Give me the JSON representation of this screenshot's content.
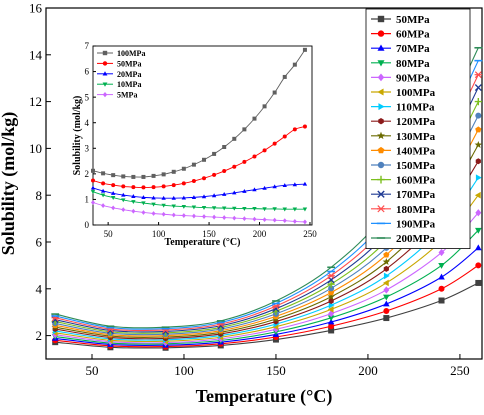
{
  "chart_data": [
    {
      "type": "line",
      "title": "",
      "xlabel": "Temperature (°C)",
      "ylabel": "Solubility  (mol/kg)",
      "xlim": [
        25,
        262
      ],
      "ylim": [
        1,
        16
      ],
      "xticks": [
        50,
        100,
        150,
        200,
        250
      ],
      "yticks": [
        2,
        4,
        6,
        8,
        10,
        12,
        14,
        16
      ],
      "grid": false,
      "legend_position": "top-right",
      "x": [
        30,
        60,
        90,
        120,
        150,
        180,
        210,
        240,
        260
      ],
      "series": [
        {
          "name": "50MPa",
          "color": "#404040",
          "marker": "square",
          "values": [
            1.72,
            1.5,
            1.48,
            1.58,
            1.83,
            2.22,
            2.75,
            3.5,
            4.25
          ]
        },
        {
          "name": "60MPa",
          "color": "#ff0000",
          "marker": "circle",
          "values": [
            1.8,
            1.56,
            1.53,
            1.65,
            1.94,
            2.4,
            3.05,
            4.0,
            5.0
          ]
        },
        {
          "name": "70MPa",
          "color": "#0000ff",
          "marker": "triangle-up",
          "values": [
            1.88,
            1.62,
            1.59,
            1.72,
            2.05,
            2.58,
            3.35,
            4.5,
            5.75
          ]
        },
        {
          "name": "80MPa",
          "color": "#00b050",
          "marker": "triangle-down",
          "values": [
            1.96,
            1.68,
            1.65,
            1.79,
            2.16,
            2.76,
            3.65,
            5.0,
            6.5
          ]
        },
        {
          "name": "90MPa",
          "color": "#cc66ff",
          "marker": "diamond",
          "values": [
            2.04,
            1.74,
            1.7,
            1.86,
            2.27,
            2.94,
            3.95,
            5.55,
            7.25
          ]
        },
        {
          "name": "100MPa",
          "color": "#c9a800",
          "marker": "triangle-left",
          "values": [
            2.12,
            1.8,
            1.76,
            1.93,
            2.38,
            3.12,
            4.25,
            6.05,
            8.0
          ]
        },
        {
          "name": "110MPa",
          "color": "#00ccff",
          "marker": "triangle-right",
          "values": [
            2.2,
            1.86,
            1.82,
            2.0,
            2.49,
            3.3,
            4.55,
            6.55,
            8.75
          ]
        },
        {
          "name": "120MPa",
          "color": "#8b1a1a",
          "marker": "hexagon",
          "values": [
            2.28,
            1.92,
            1.88,
            2.07,
            2.6,
            3.48,
            4.85,
            7.05,
            9.45
          ]
        },
        {
          "name": "130MPa",
          "color": "#6b6b00",
          "marker": "star",
          "values": [
            2.36,
            1.98,
            1.94,
            2.14,
            2.71,
            3.66,
            5.15,
            7.55,
            10.15
          ]
        },
        {
          "name": "140MPa",
          "color": "#ff8c00",
          "marker": "pentagon",
          "values": [
            2.44,
            2.04,
            2.0,
            2.21,
            2.82,
            3.84,
            5.45,
            8.05,
            10.8
          ]
        },
        {
          "name": "150MPa",
          "color": "#4f81bd",
          "marker": "circle",
          "values": [
            2.52,
            2.1,
            2.06,
            2.28,
            2.93,
            4.02,
            5.75,
            8.55,
            11.4
          ]
        },
        {
          "name": "160MPa",
          "color": "#7cbf1e",
          "marker": "plus",
          "values": [
            2.6,
            2.16,
            2.12,
            2.35,
            3.04,
            4.2,
            6.05,
            9.05,
            12.0
          ]
        },
        {
          "name": "170MPa",
          "color": "#1f3a93",
          "marker": "cross",
          "values": [
            2.68,
            2.22,
            2.18,
            2.42,
            3.15,
            4.38,
            6.35,
            9.55,
            12.6
          ]
        },
        {
          "name": "180MPa",
          "color": "#ff4d4d",
          "marker": "asterisk",
          "values": [
            2.76,
            2.28,
            2.24,
            2.49,
            3.26,
            4.56,
            6.65,
            10.05,
            13.15
          ]
        },
        {
          "name": "190MPa",
          "color": "#1e90ff",
          "marker": "dash",
          "values": [
            2.84,
            2.34,
            2.3,
            2.56,
            3.37,
            4.74,
            6.95,
            10.55,
            13.75
          ]
        },
        {
          "name": "200MPa",
          "color": "#2e8b57",
          "marker": "dash",
          "values": [
            2.92,
            2.4,
            2.36,
            2.63,
            3.48,
            4.92,
            7.25,
            11.05,
            14.3
          ]
        }
      ]
    },
    {
      "type": "line",
      "title": "",
      "xlabel": "Temperature (°C)",
      "ylabel": "Solubility  (mol/kg)",
      "xlim": [
        35,
        252
      ],
      "ylim": [
        0,
        7
      ],
      "xticks": [
        50,
        100,
        150,
        200,
        250
      ],
      "yticks": [
        0,
        1,
        2,
        3,
        4,
        5,
        6,
        7
      ],
      "grid": false,
      "legend_position": "top-left",
      "x": [
        35,
        45,
        55,
        65,
        75,
        85,
        95,
        105,
        115,
        125,
        135,
        145,
        155,
        165,
        175,
        185,
        195,
        205,
        215,
        225,
        235,
        245
      ],
      "series": [
        {
          "name": "100MPa",
          "color": "#606060",
          "marker": "square",
          "values": [
            2.12,
            2.02,
            1.95,
            1.9,
            1.88,
            1.88,
            1.92,
            1.98,
            2.08,
            2.2,
            2.36,
            2.55,
            2.78,
            3.05,
            3.37,
            3.74,
            4.16,
            4.64,
            5.18,
            5.79,
            6.27,
            6.85
          ]
        },
        {
          "name": "50MPa",
          "color": "#ff0000",
          "marker": "circle",
          "values": [
            1.74,
            1.63,
            1.56,
            1.51,
            1.48,
            1.47,
            1.48,
            1.51,
            1.56,
            1.63,
            1.72,
            1.83,
            1.96,
            2.11,
            2.28,
            2.47,
            2.68,
            2.92,
            3.18,
            3.46,
            3.74,
            3.85
          ]
        },
        {
          "name": "20MPa",
          "color": "#0000ff",
          "marker": "triangle-up",
          "values": [
            1.45,
            1.33,
            1.24,
            1.17,
            1.12,
            1.08,
            1.06,
            1.05,
            1.05,
            1.06,
            1.08,
            1.11,
            1.15,
            1.2,
            1.26,
            1.32,
            1.38,
            1.44,
            1.5,
            1.55,
            1.58,
            1.6
          ]
        },
        {
          "name": "10MPa",
          "color": "#00b050",
          "marker": "triangle-down",
          "values": [
            1.3,
            1.17,
            1.07,
            0.98,
            0.91,
            0.86,
            0.81,
            0.77,
            0.74,
            0.72,
            0.7,
            0.68,
            0.67,
            0.66,
            0.65,
            0.64,
            0.64,
            0.63,
            0.63,
            0.62,
            0.62,
            0.62
          ]
        },
        {
          "name": "5MPa",
          "color": "#cc66ff",
          "marker": "diamond",
          "values": [
            0.88,
            0.76,
            0.67,
            0.6,
            0.54,
            0.49,
            0.45,
            0.42,
            0.39,
            0.37,
            0.35,
            0.33,
            0.31,
            0.29,
            0.27,
            0.25,
            0.23,
            0.21,
            0.19,
            0.17,
            0.14,
            0.12
          ]
        }
      ]
    }
  ]
}
